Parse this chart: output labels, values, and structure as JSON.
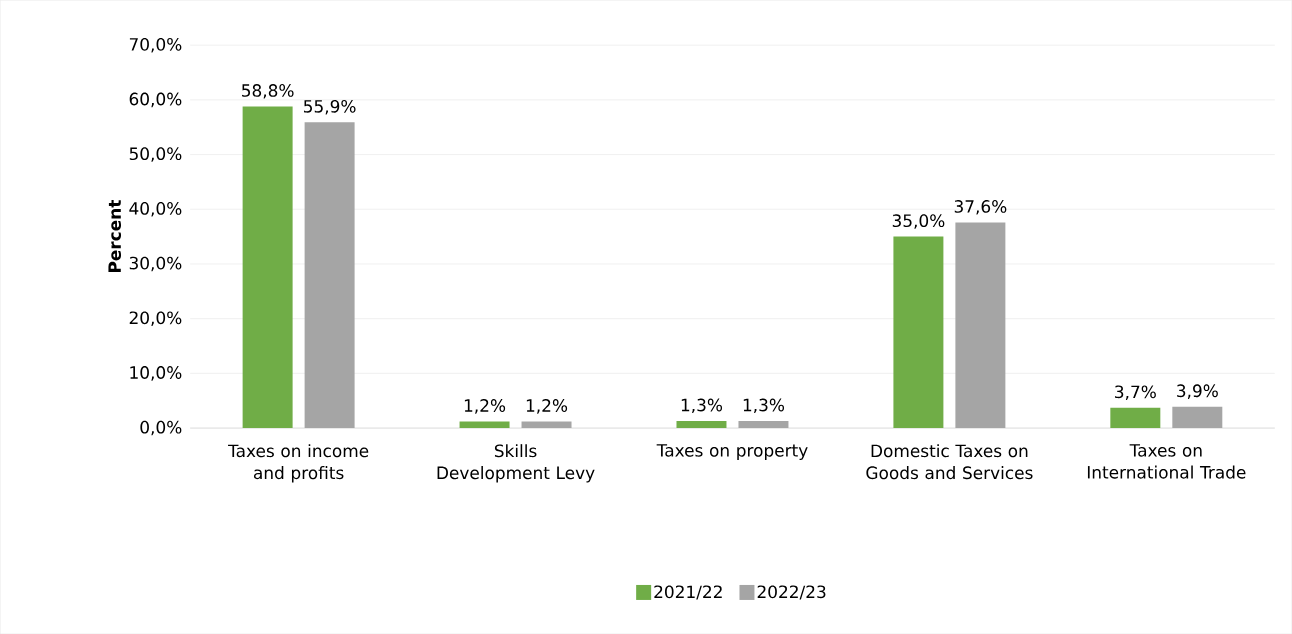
{
  "chart_data": {
    "type": "bar",
    "ylabel": "Percent",
    "categories": [
      "Taxes on income and profits",
      "Skills Development Levy",
      "Taxes on property",
      "Domestic Taxes on Goods and Services",
      "Taxes on International Trade"
    ],
    "series": [
      {
        "name": "2021/22",
        "color": "#70ad47",
        "values": [
          58.8,
          1.2,
          1.3,
          35.0,
          3.7
        ],
        "value_labels": [
          "58,8%",
          "1,2%",
          "1,3%",
          "35,0%",
          "3,7%"
        ]
      },
      {
        "name": "2022/23",
        "color": "#a5a5a5",
        "values": [
          55.9,
          1.2,
          1.3,
          37.6,
          3.9
        ],
        "value_labels": [
          "55,9%",
          "1,2%",
          "1,3%",
          "37,6%",
          "3,9%"
        ]
      }
    ],
    "ylim": [
      0,
      70
    ],
    "yticks": [
      {
        "value": 0,
        "label": "0,0%"
      },
      {
        "value": 10,
        "label": "10,0%"
      },
      {
        "value": 20,
        "label": "20,0%"
      },
      {
        "value": 30,
        "label": "30,0%"
      },
      {
        "value": 40,
        "label": "40,0%"
      },
      {
        "value": 50,
        "label": "50,0%"
      },
      {
        "value": 60,
        "label": "60,0%"
      },
      {
        "value": 70,
        "label": "70,0%"
      }
    ],
    "grid": "y",
    "legend": "bottom"
  }
}
